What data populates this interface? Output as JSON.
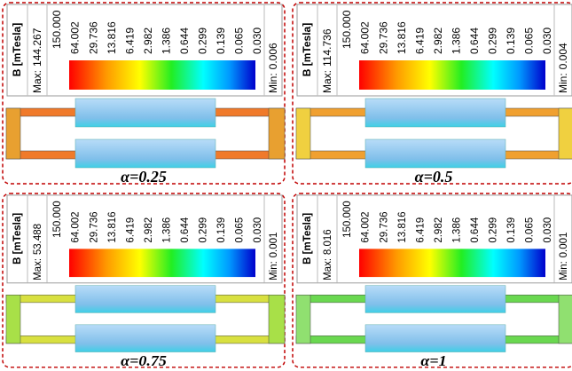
{
  "panels": [
    {
      "legend": {
        "title": "B [mTesla]",
        "max_label": "Max:",
        "max": "144.267",
        "min_label": "Min:",
        "min": "0.006",
        "scale": [
          "150.000",
          "64.002",
          "29.736",
          "13.816",
          "6.419",
          "2.982",
          "1.386",
          "0.644",
          "0.299",
          "0.139",
          "0.065",
          "0.030"
        ]
      },
      "caption": "α=0.25"
    },
    {
      "legend": {
        "title": "B [mTesla]",
        "max_label": "Max:",
        "max": "114.736",
        "min_label": "Min:",
        "min": "0.004",
        "scale": [
          "150.000",
          "64.002",
          "29.736",
          "13.816",
          "6.419",
          "2.982",
          "1.386",
          "0.644",
          "0.299",
          "0.139",
          "0.065",
          "0.030"
        ]
      },
      "caption": "α=0.5"
    },
    {
      "legend": {
        "title": "B [mTesla]",
        "max_label": "Max:",
        "max": "53.488",
        "min_label": "Min:",
        "min": "0.001",
        "scale": [
          "150.000",
          "64.002",
          "29.736",
          "13.816",
          "6.419",
          "2.982",
          "1.386",
          "0.644",
          "0.299",
          "0.139",
          "0.065",
          "0.030"
        ]
      },
      "caption": "α=0.75"
    },
    {
      "legend": {
        "title": "B [mTesla]",
        "max_label": "Max:",
        "max": "8.016",
        "min_label": "Min:",
        "min": "0.001",
        "scale": [
          "150.000",
          "64.002",
          "29.736",
          "13.816",
          "6.419",
          "2.982",
          "1.386",
          "0.644",
          "0.299",
          "0.139",
          "0.065",
          "0.030"
        ]
      },
      "caption": "α=1"
    }
  ]
}
